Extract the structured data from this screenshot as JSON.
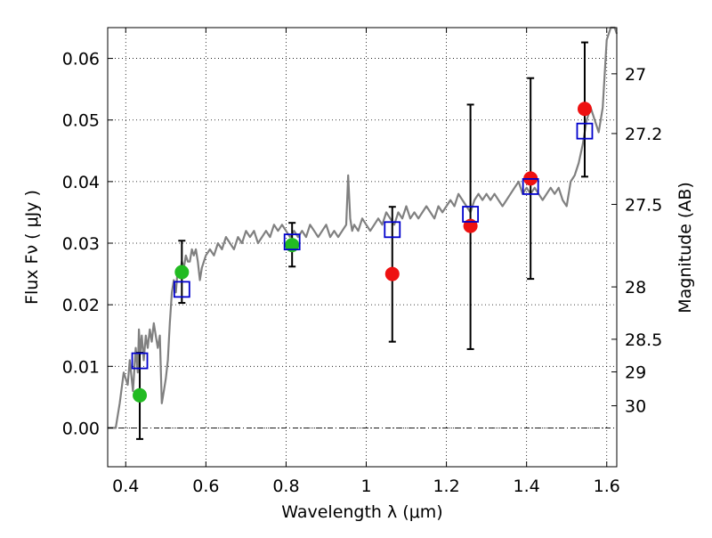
{
  "chart_data": {
    "type": "scatter",
    "xlabel": "Wavelength  λ (μm)",
    "ylabel": "Flux  Fν  ( μJy )",
    "y2label": "Magnitude (AB)",
    "xlim": [
      0.355,
      1.625
    ],
    "ylim": [
      -0.0063,
      0.065
    ],
    "x_ticks": [
      0.4,
      0.6,
      0.8,
      1.0,
      1.2,
      1.4,
      1.6
    ],
    "x_tick_labels": [
      "0.4",
      "0.6",
      "0.8",
      "1",
      "1.2",
      "1.4",
      "1.6"
    ],
    "y_ticks": [
      0.0,
      0.01,
      0.02,
      0.03,
      0.04,
      0.05,
      0.06
    ],
    "y_tick_labels": [
      "0.00",
      "0.01",
      "0.02",
      "0.03",
      "0.04",
      "0.05",
      "0.06"
    ],
    "mag_ticks": [
      {
        "label": "27",
        "flux": 0.0575
      },
      {
        "label": "27.2",
        "flux": 0.0478
      },
      {
        "label": "27.5",
        "flux": 0.0363
      },
      {
        "label": "28",
        "flux": 0.0229
      },
      {
        "label": "28.5",
        "flux": 0.0144
      },
      {
        "label": "29",
        "flux": 0.0091
      },
      {
        "label": "30",
        "flux": 0.0036
      }
    ],
    "grid": true,
    "colors": {
      "template": "#808080",
      "green_points": "#22bb22",
      "red_points": "#ee1111",
      "model_squares": "#0000cc",
      "errorbars": "#000000"
    },
    "template_spectrum": {
      "x": [
        0.355,
        0.375,
        0.385,
        0.395,
        0.405,
        0.41,
        0.418,
        0.425,
        0.43,
        0.433,
        0.436,
        0.44,
        0.445,
        0.45,
        0.455,
        0.46,
        0.465,
        0.47,
        0.475,
        0.48,
        0.485,
        0.49,
        0.495,
        0.5,
        0.505,
        0.51,
        0.515,
        0.52,
        0.525,
        0.53,
        0.535,
        0.54,
        0.545,
        0.55,
        0.555,
        0.56,
        0.565,
        0.57,
        0.575,
        0.58,
        0.585,
        0.59,
        0.6,
        0.61,
        0.62,
        0.63,
        0.64,
        0.65,
        0.66,
        0.67,
        0.68,
        0.69,
        0.7,
        0.71,
        0.72,
        0.73,
        0.74,
        0.75,
        0.76,
        0.77,
        0.78,
        0.79,
        0.8,
        0.81,
        0.82,
        0.83,
        0.84,
        0.85,
        0.86,
        0.87,
        0.88,
        0.89,
        0.9,
        0.91,
        0.92,
        0.93,
        0.94,
        0.95,
        0.955,
        0.96,
        0.965,
        0.97,
        0.98,
        0.99,
        1.0,
        1.01,
        1.02,
        1.03,
        1.04,
        1.05,
        1.06,
        1.07,
        1.08,
        1.09,
        1.1,
        1.11,
        1.12,
        1.13,
        1.14,
        1.15,
        1.16,
        1.17,
        1.18,
        1.19,
        1.2,
        1.21,
        1.22,
        1.23,
        1.24,
        1.25,
        1.26,
        1.27,
        1.28,
        1.29,
        1.3,
        1.31,
        1.32,
        1.33,
        1.34,
        1.35,
        1.36,
        1.37,
        1.38,
        1.39,
        1.4,
        1.41,
        1.42,
        1.43,
        1.44,
        1.45,
        1.46,
        1.47,
        1.48,
        1.49,
        1.5,
        1.51,
        1.52,
        1.53,
        1.54,
        1.55,
        1.56,
        1.57,
        1.58,
        1.59,
        1.6,
        1.61,
        1.62,
        1.625
      ],
      "y": [
        0.0,
        0.0,
        0.004,
        0.009,
        0.007,
        0.011,
        0.006,
        0.013,
        0.009,
        0.016,
        0.012,
        0.015,
        0.011,
        0.015,
        0.013,
        0.016,
        0.014,
        0.017,
        0.015,
        0.013,
        0.015,
        0.004,
        0.006,
        0.008,
        0.011,
        0.017,
        0.022,
        0.024,
        0.022,
        0.026,
        0.025,
        0.027,
        0.026,
        0.028,
        0.027,
        0.027,
        0.029,
        0.028,
        0.029,
        0.027,
        0.024,
        0.026,
        0.028,
        0.029,
        0.028,
        0.03,
        0.029,
        0.031,
        0.03,
        0.029,
        0.031,
        0.03,
        0.032,
        0.031,
        0.032,
        0.03,
        0.031,
        0.032,
        0.031,
        0.033,
        0.032,
        0.033,
        0.032,
        0.031,
        0.032,
        0.031,
        0.032,
        0.031,
        0.033,
        0.032,
        0.031,
        0.032,
        0.033,
        0.031,
        0.032,
        0.031,
        0.032,
        0.033,
        0.041,
        0.034,
        0.032,
        0.033,
        0.032,
        0.034,
        0.033,
        0.032,
        0.033,
        0.034,
        0.033,
        0.035,
        0.034,
        0.033,
        0.035,
        0.034,
        0.036,
        0.034,
        0.035,
        0.034,
        0.035,
        0.036,
        0.035,
        0.034,
        0.036,
        0.035,
        0.036,
        0.037,
        0.036,
        0.038,
        0.037,
        0.036,
        0.035,
        0.037,
        0.038,
        0.037,
        0.038,
        0.037,
        0.038,
        0.037,
        0.036,
        0.037,
        0.038,
        0.039,
        0.04,
        0.038,
        0.039,
        0.038,
        0.039,
        0.038,
        0.037,
        0.038,
        0.039,
        0.038,
        0.039,
        0.037,
        0.036,
        0.04,
        0.041,
        0.043,
        0.046,
        0.05,
        0.052,
        0.05,
        0.048,
        0.052,
        0.063,
        0.069,
        0.066,
        0.064
      ],
      "note": "approximate"
    },
    "observed_green": [
      {
        "x": 0.435,
        "y": 0.0053,
        "yerr_low": -0.0018,
        "yerr_high": 0.0122
      },
      {
        "x": 0.54,
        "y": 0.0253,
        "yerr_low": 0.0203,
        "yerr_high": 0.0304
      },
      {
        "x": 0.815,
        "y": 0.0297,
        "yerr_low": 0.0262,
        "yerr_high": 0.0333
      }
    ],
    "observed_red": [
      {
        "x": 1.065,
        "y": 0.025,
        "yerr_low": 0.014,
        "yerr_high": 0.0359
      },
      {
        "x": 1.26,
        "y": 0.0328,
        "yerr_low": 0.0128,
        "yerr_high": 0.0525
      },
      {
        "x": 1.41,
        "y": 0.0405,
        "yerr_low": 0.0242,
        "yerr_high": 0.0568
      },
      {
        "x": 1.545,
        "y": 0.0518,
        "yerr_low": 0.0408,
        "yerr_high": 0.0626
      }
    ],
    "model_squares": [
      {
        "x": 0.435,
        "y": 0.0109
      },
      {
        "x": 0.54,
        "y": 0.0225
      },
      {
        "x": 0.815,
        "y": 0.0302
      },
      {
        "x": 1.065,
        "y": 0.0322
      },
      {
        "x": 1.26,
        "y": 0.0347
      },
      {
        "x": 1.41,
        "y": 0.0392
      },
      {
        "x": 1.545,
        "y": 0.0482
      }
    ]
  }
}
